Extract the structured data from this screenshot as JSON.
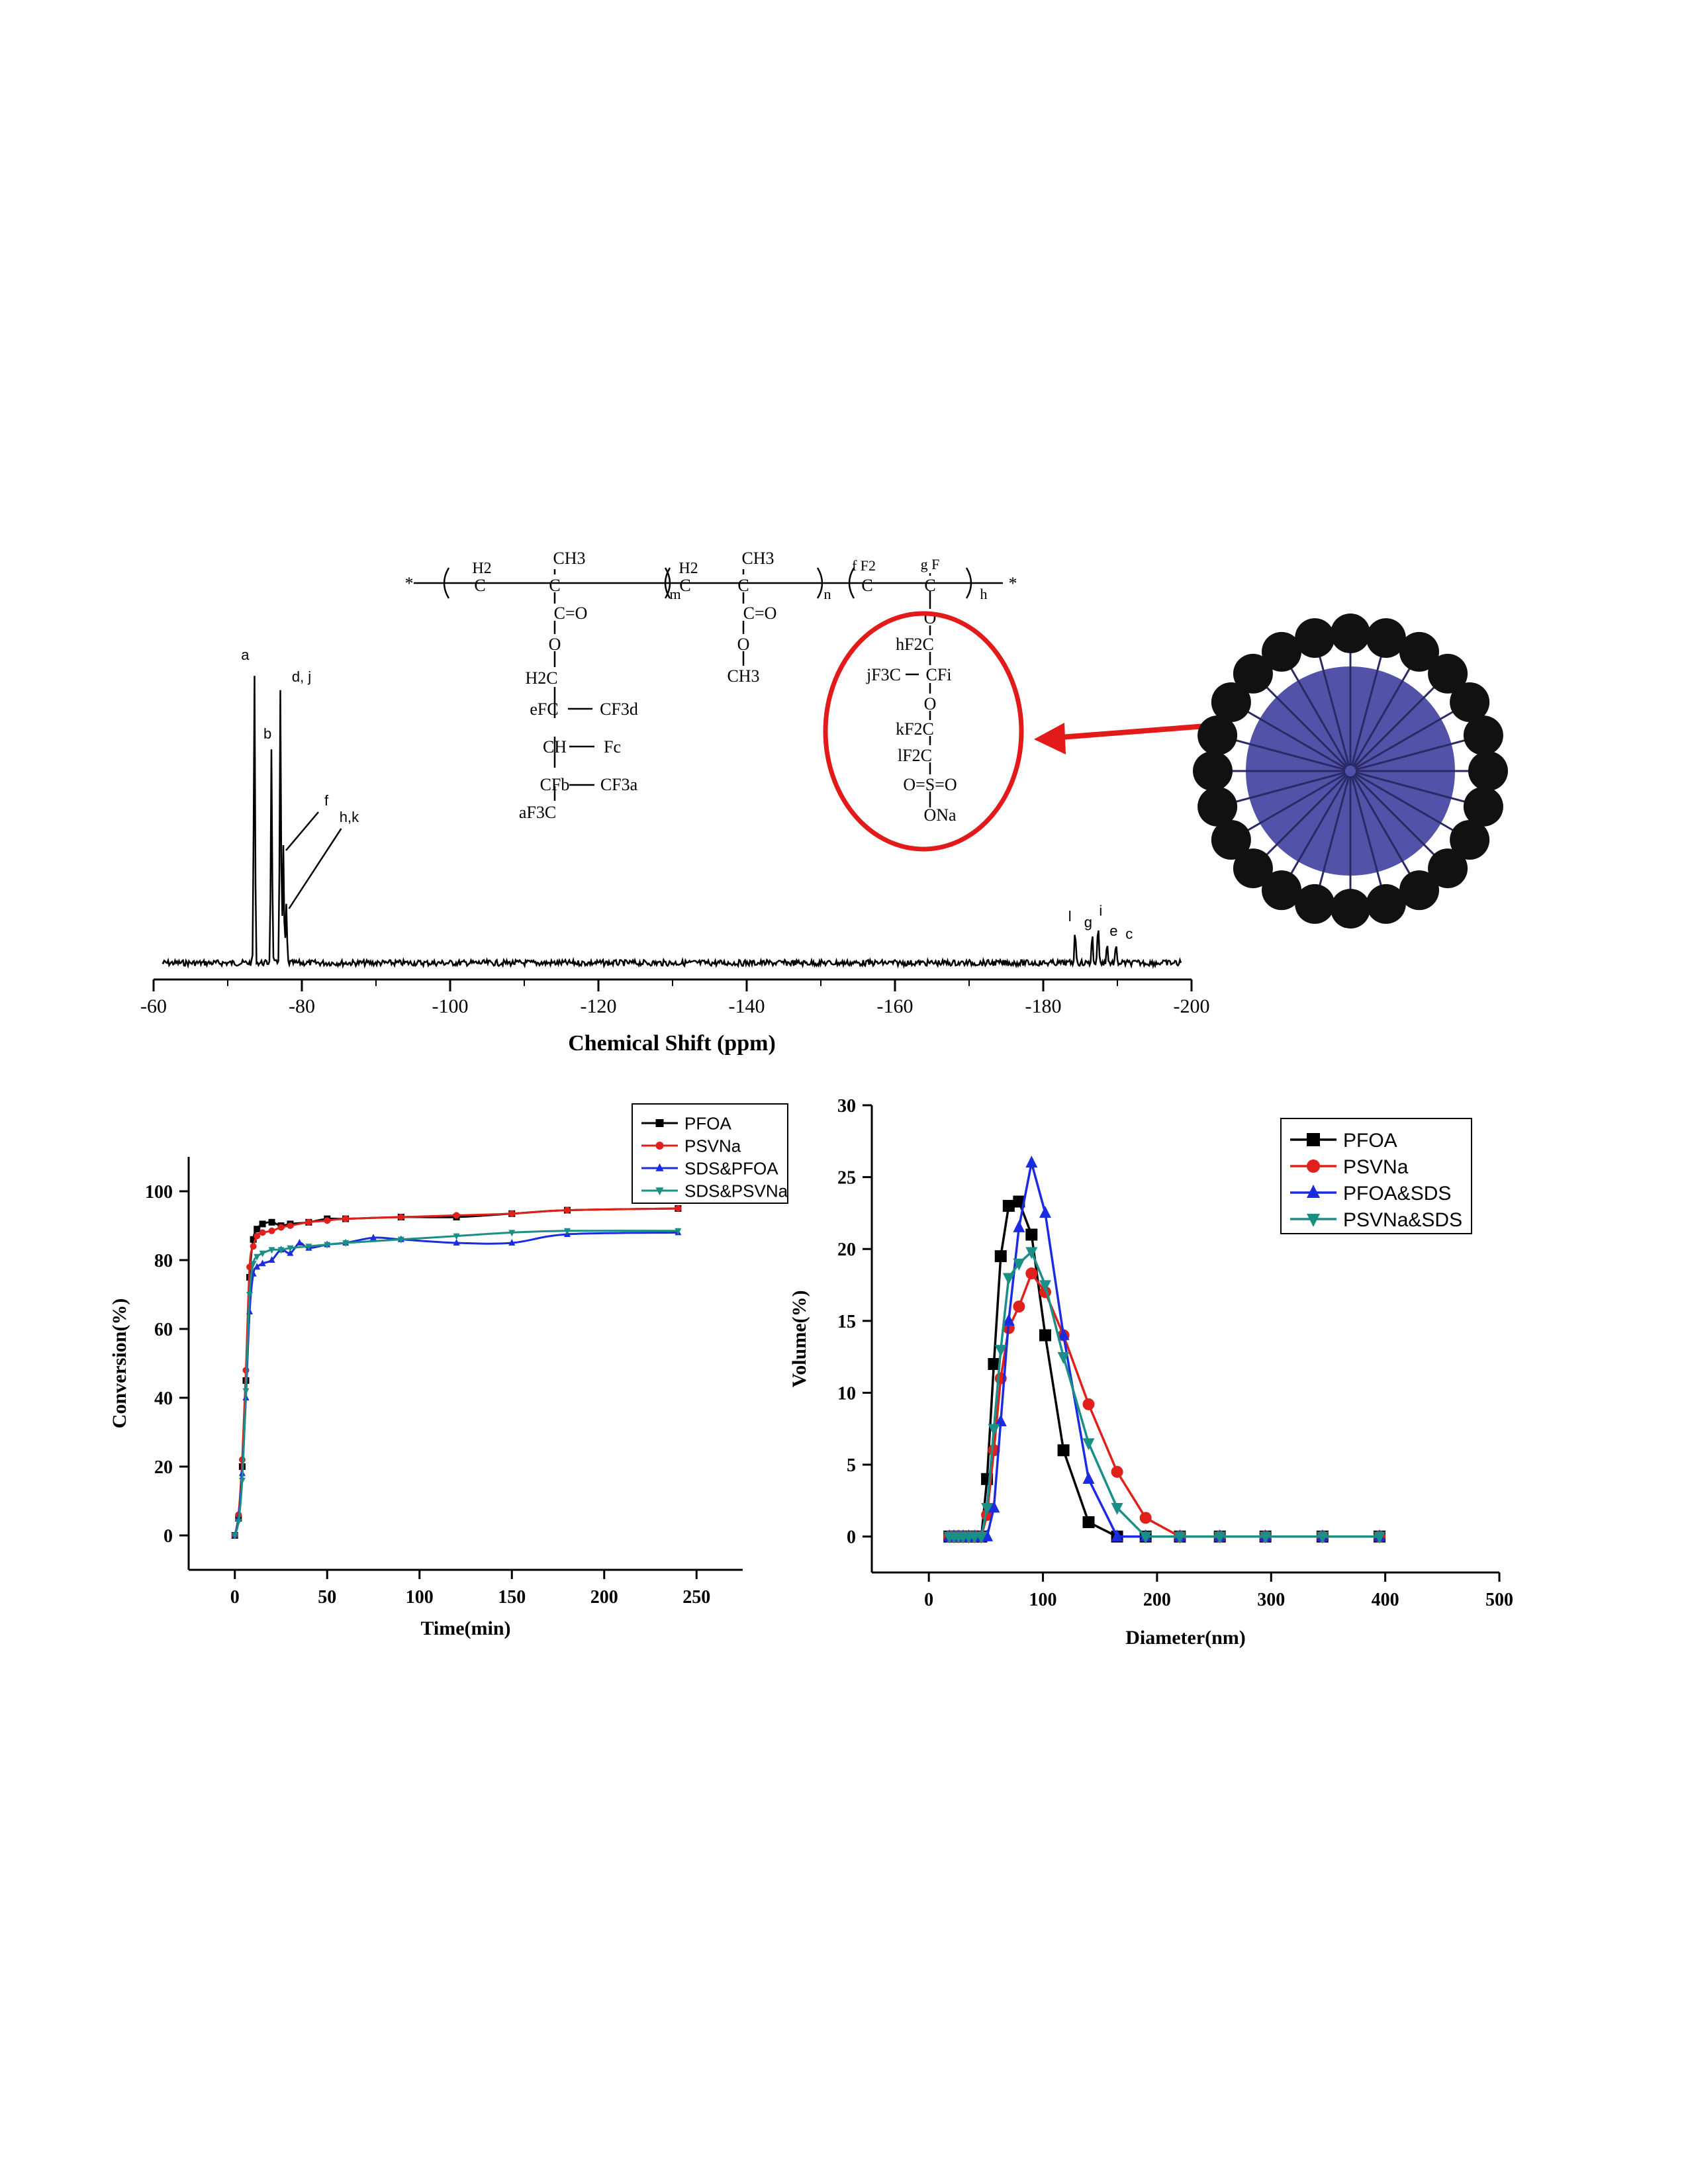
{
  "nmr": {
    "xlabel": "Chemical Shift (ppm)",
    "ticks": [
      -60,
      -80,
      -100,
      -120,
      -140,
      -160,
      -180,
      -200
    ],
    "tick_labels": [
      "-60",
      "-80",
      "-100",
      "-120",
      "-140",
      "-160",
      "-180",
      "-200"
    ],
    "peaks": [
      {
        "label": "a",
        "ppm": -73.6,
        "height": 1.0
      },
      {
        "label": "b",
        "ppm": -75.9,
        "height": 0.73
      },
      {
        "label": "d, j",
        "ppm": -77.1,
        "height": 0.93
      },
      {
        "label": "f",
        "ppm": -77.5,
        "height": 0.4
      },
      {
        "label": "h,k",
        "ppm": -77.9,
        "height": 0.2
      },
      {
        "label": "l",
        "ppm": -184.3,
        "height": 0.12
      },
      {
        "label": "g",
        "ppm": -186.6,
        "height": 0.1
      },
      {
        "label": "i",
        "ppm": -187.4,
        "height": 0.14
      },
      {
        "label": "e",
        "ppm": -188.6,
        "height": 0.07
      },
      {
        "label": "c",
        "ppm": -189.8,
        "height": 0.06
      }
    ]
  },
  "structure": {
    "labels": [
      "*",
      "H2",
      "C",
      "CH3",
      "C",
      "m",
      "C=O",
      "O",
      "H2C",
      "eFC",
      "CF3d",
      "CH",
      "Fc",
      "CFb",
      "CF3a",
      "aF3C",
      "H2",
      "C",
      "CH3",
      "C",
      "n",
      "C=O",
      "O",
      "CH3",
      "f F2",
      "C",
      "g F",
      "C",
      "h",
      "*",
      "O",
      "hF2C",
      "jF3C",
      "CFi",
      "O",
      "kF2C",
      "lF2C",
      "O=S=O",
      "ONa"
    ]
  },
  "chart_data": [
    {
      "type": "line",
      "xlabel": "Time(min)",
      "ylabel": "Conversion(%)",
      "xlim": [
        -25,
        275
      ],
      "ylim": [
        -10,
        110
      ],
      "xticks": [
        0,
        50,
        100,
        150,
        200,
        250
      ],
      "yticks": [
        0,
        20,
        40,
        60,
        80,
        100
      ],
      "legend": "top-right",
      "series": [
        {
          "name": "PFOA",
          "color": "#000000",
          "marker": "square",
          "x": [
            0,
            2,
            4,
            6,
            8,
            10,
            12,
            15,
            20,
            25,
            30,
            40,
            50,
            60,
            90,
            120,
            150,
            180,
            240
          ],
          "y": [
            0,
            5,
            20,
            45,
            75,
            86,
            89,
            90.5,
            91,
            90,
            90.5,
            91,
            92,
            92,
            92.5,
            92.5,
            93.5,
            94.5,
            95
          ]
        },
        {
          "name": "PSVNa",
          "color": "#e0201b",
          "marker": "circle",
          "x": [
            0,
            2,
            4,
            6,
            8,
            10,
            12,
            15,
            20,
            25,
            30,
            40,
            50,
            60,
            90,
            120,
            150,
            180,
            240
          ],
          "y": [
            0,
            6,
            22,
            48,
            78,
            84,
            87,
            88,
            88.5,
            89.5,
            90,
            91,
            91.5,
            92,
            92.5,
            93,
            93.5,
            94.5,
            95
          ]
        },
        {
          "name": "SDS&PFOA",
          "color": "#1a2be0",
          "marker": "triangle-up",
          "x": [
            0,
            2,
            4,
            6,
            8,
            10,
            12,
            15,
            20,
            25,
            30,
            35,
            40,
            50,
            60,
            75,
            90,
            120,
            150,
            180,
            240
          ],
          "y": [
            0,
            5,
            18,
            40,
            65,
            76,
            78,
            79,
            80,
            83,
            82,
            85,
            83.5,
            84.5,
            85,
            86.5,
            86,
            85,
            85,
            87.5,
            88
          ]
        },
        {
          "name": "SDS&PSVNa",
          "color": "#1a8f86",
          "marker": "triangle-down",
          "x": [
            0,
            2,
            4,
            6,
            8,
            10,
            12,
            15,
            20,
            25,
            30,
            40,
            50,
            60,
            90,
            120,
            150,
            180,
            240
          ],
          "y": [
            0,
            4,
            16,
            42,
            70,
            79,
            81,
            82,
            83,
            83,
            83.5,
            84,
            84.5,
            85,
            86,
            87,
            88,
            88.5,
            88.5
          ]
        }
      ]
    },
    {
      "type": "line",
      "xlabel": "Diameter(nm)",
      "ylabel": "Volume(%)",
      "xlim": [
        -50,
        500
      ],
      "ylim": [
        -2.5,
        30
      ],
      "xticks": [
        0,
        100,
        200,
        300,
        400,
        500
      ],
      "yticks": [
        0,
        5,
        10,
        15,
        20,
        25,
        30
      ],
      "legend": "top-right",
      "series": [
        {
          "name": "PFOA",
          "color": "#000000",
          "marker": "square",
          "x": [
            18,
            22,
            26,
            30,
            35,
            40,
            46,
            51,
            57,
            63,
            70,
            79,
            90,
            102,
            118,
            140,
            165,
            190,
            220,
            255,
            295,
            345,
            395
          ],
          "y": [
            0,
            0,
            0,
            0,
            0,
            0,
            0,
            4,
            12,
            19.5,
            23,
            23.3,
            21,
            14,
            6,
            1,
            0,
            0,
            0,
            0,
            0,
            0,
            0
          ]
        },
        {
          "name": "PSVNa",
          "color": "#e0201b",
          "marker": "circle",
          "x": [
            18,
            22,
            26,
            30,
            35,
            40,
            46,
            51,
            57,
            63,
            70,
            79,
            90,
            102,
            118,
            140,
            165,
            190,
            220,
            255,
            295,
            345,
            395
          ],
          "y": [
            0,
            0,
            0,
            0,
            0,
            0,
            0,
            1.5,
            6,
            11,
            14.5,
            16,
            18.3,
            17,
            14,
            9.2,
            4.5,
            1.3,
            0,
            0,
            0,
            0,
            0
          ]
        },
        {
          "name": "PFOA&SDS",
          "color": "#1a2be0",
          "marker": "triangle-up",
          "x": [
            18,
            22,
            26,
            30,
            35,
            40,
            46,
            51,
            57,
            63,
            70,
            79,
            90,
            102,
            118,
            140,
            165,
            190,
            220,
            255,
            295,
            345,
            395
          ],
          "y": [
            0,
            0,
            0,
            0,
            0,
            0,
            0,
            0,
            2,
            8,
            15,
            21.5,
            26,
            22.5,
            14,
            4,
            0,
            0,
            0,
            0,
            0,
            0,
            0
          ]
        },
        {
          "name": "PSVNa&SDS",
          "color": "#1a8f86",
          "marker": "triangle-down",
          "x": [
            18,
            22,
            26,
            30,
            35,
            40,
            46,
            51,
            57,
            63,
            70,
            79,
            90,
            102,
            118,
            140,
            165,
            190,
            220,
            255,
            295,
            345,
            395
          ],
          "y": [
            0,
            0,
            0,
            0,
            0,
            0,
            0,
            2,
            7.5,
            13,
            18,
            19,
            19.8,
            17.5,
            12.5,
            6.5,
            2,
            0,
            0,
            0,
            0,
            0,
            0
          ]
        }
      ]
    }
  ]
}
